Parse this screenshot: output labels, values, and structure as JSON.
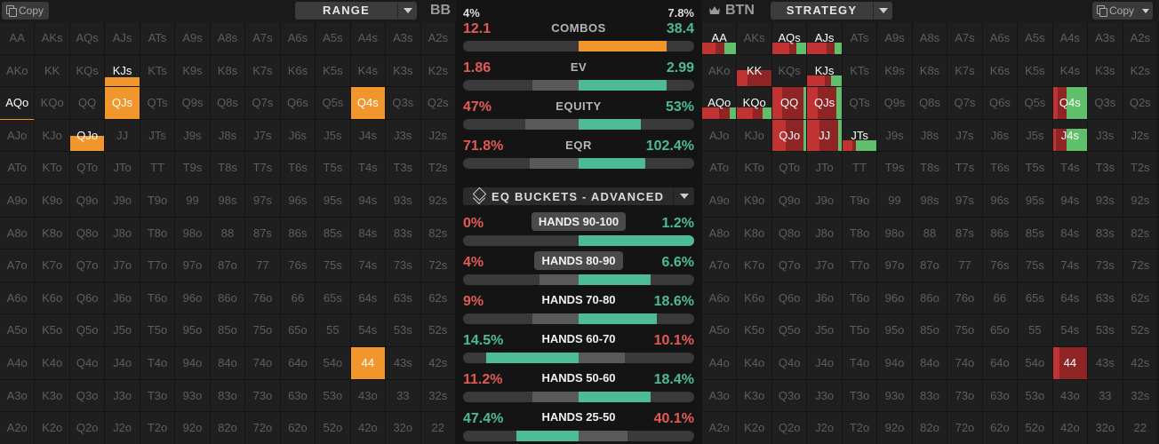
{
  "left": {
    "copy_label": "Copy",
    "range_label": "RANGE",
    "position": "BB"
  },
  "right": {
    "copy_label": "Copy",
    "strategy_label": "STRATEGY",
    "position": "BTN"
  },
  "hands": [
    [
      "AA",
      "AKs",
      "AQs",
      "AJs",
      "ATs",
      "A9s",
      "A8s",
      "A7s",
      "A6s",
      "A5s",
      "A4s",
      "A3s",
      "A2s"
    ],
    [
      "AKo",
      "KK",
      "KQs",
      "KJs",
      "KTs",
      "K9s",
      "K8s",
      "K7s",
      "K6s",
      "K5s",
      "K4s",
      "K3s",
      "K2s"
    ],
    [
      "AQo",
      "KQo",
      "QQ",
      "QJs",
      "QTs",
      "Q9s",
      "Q8s",
      "Q7s",
      "Q6s",
      "Q5s",
      "Q4s",
      "Q3s",
      "Q2s"
    ],
    [
      "AJo",
      "KJo",
      "QJo",
      "JJ",
      "JTs",
      "J9s",
      "J8s",
      "J7s",
      "J6s",
      "J5s",
      "J4s",
      "J3s",
      "J2s"
    ],
    [
      "ATo",
      "KTo",
      "QTo",
      "JTo",
      "TT",
      "T9s",
      "T8s",
      "T7s",
      "T6s",
      "T5s",
      "T4s",
      "T3s",
      "T2s"
    ],
    [
      "A9o",
      "K9o",
      "Q9o",
      "J9o",
      "T9o",
      "99",
      "98s",
      "97s",
      "96s",
      "95s",
      "94s",
      "93s",
      "92s"
    ],
    [
      "A8o",
      "K8o",
      "Q8o",
      "J8o",
      "T8o",
      "98o",
      "88",
      "87s",
      "86s",
      "85s",
      "84s",
      "83s",
      "82s"
    ],
    [
      "A7o",
      "K7o",
      "Q7o",
      "J7o",
      "T7o",
      "97o",
      "87o",
      "77",
      "76s",
      "75s",
      "74s",
      "73s",
      "72s"
    ],
    [
      "A6o",
      "K6o",
      "Q6o",
      "J6o",
      "T6o",
      "96o",
      "86o",
      "76o",
      "66",
      "65s",
      "64s",
      "63s",
      "62s"
    ],
    [
      "A5o",
      "K5o",
      "Q5o",
      "J5o",
      "T5o",
      "95o",
      "85o",
      "75o",
      "65o",
      "55",
      "54s",
      "53s",
      "52s"
    ],
    [
      "A4o",
      "K4o",
      "Q4o",
      "J4o",
      "T4o",
      "94o",
      "84o",
      "74o",
      "64o",
      "54o",
      "44",
      "43s",
      "42s"
    ],
    [
      "A3o",
      "K3o",
      "Q3o",
      "J3o",
      "T3o",
      "93o",
      "83o",
      "73o",
      "63o",
      "53o",
      "43o",
      "33",
      "32s"
    ],
    [
      "A2o",
      "K2o",
      "Q2o",
      "J2o",
      "T2o",
      "92o",
      "82o",
      "72o",
      "62o",
      "52o",
      "42o",
      "32o",
      "22"
    ]
  ],
  "bb_range": [
    {
      "hand": "KJs",
      "fraction": 0.28
    },
    {
      "hand": "QJs",
      "fraction": 1.0
    },
    {
      "hand": "Q4s",
      "fraction": 1.0
    },
    {
      "hand": "QJo",
      "fraction": 0.5
    },
    {
      "hand": "44",
      "fraction": 1.0
    }
  ],
  "bb_selected": "AQo",
  "btn_strategy": [
    {
      "hand": "AA",
      "fraction": 0.35,
      "mix": [
        0.4,
        0.25,
        0.35
      ]
    },
    {
      "hand": "AQs",
      "fraction": 0.35,
      "mix": [
        0.5,
        0.2,
        0.3
      ]
    },
    {
      "hand": "AJs",
      "fraction": 0.35,
      "mix": [
        0.55,
        0.25,
        0.2
      ]
    },
    {
      "hand": "KK",
      "fraction": 0.5,
      "mix": [
        0.3,
        0.7,
        0.0
      ]
    },
    {
      "hand": "KJs",
      "fraction": 0.35,
      "mix": [
        0.5,
        0.2,
        0.3
      ]
    },
    {
      "hand": "AQo",
      "fraction": 0.35,
      "mix": [
        0.5,
        0.3,
        0.2
      ]
    },
    {
      "hand": "KQo",
      "fraction": 0.35,
      "mix": [
        0.45,
        0.3,
        0.25
      ]
    },
    {
      "hand": "QQ",
      "fraction": 1.0,
      "mix": [
        0.3,
        0.6,
        0.1
      ]
    },
    {
      "hand": "QJs",
      "fraction": 1.0,
      "mix": [
        0.3,
        0.55,
        0.15
      ]
    },
    {
      "hand": "Q4s",
      "fraction": 1.0,
      "mix": [
        0.15,
        0.25,
        0.6
      ]
    },
    {
      "hand": "QJo",
      "fraction": 1.0,
      "mix": [
        0.4,
        0.5,
        0.1
      ]
    },
    {
      "hand": "JJ",
      "fraction": 1.0,
      "mix": [
        0.35,
        0.55,
        0.1
      ]
    },
    {
      "hand": "JTs",
      "fraction": 0.35,
      "mix": [
        0.3,
        0.1,
        0.6
      ]
    },
    {
      "hand": "J4s",
      "fraction": 0.7,
      "mix": [
        0.1,
        0.3,
        0.6
      ]
    },
    {
      "hand": "44",
      "fraction": 1.0,
      "mix": [
        0.2,
        0.8,
        0.0
      ]
    }
  ],
  "strategy_colors": [
    "#c13232",
    "#8e2424",
    "#5fbf6a"
  ],
  "colors": {
    "orange": "#f0962d",
    "red": "#e35a55",
    "green": "#4dbb94",
    "bar_bg": "#3a3a3c",
    "bar_mid": "#5a5a5c"
  },
  "stats": {
    "top_left_pct": "4%",
    "top_right_pct": "7.8%",
    "rows": [
      {
        "title": "COMBOS",
        "left": "12.1",
        "right": "38.4",
        "fill": [
          {
            "from": 0,
            "to": 0.5,
            "color": "#3a3a3c"
          },
          {
            "from": 0.5,
            "to": 0.88,
            "color": "#f0962d"
          }
        ]
      },
      {
        "title": "EV",
        "left": "1.86",
        "right": "2.99",
        "fill": [
          {
            "from": 0.3,
            "to": 0.5,
            "color": "#5a5a5c"
          },
          {
            "from": 0.5,
            "to": 0.88,
            "color": "#4dbb94"
          }
        ]
      },
      {
        "title": "EQUITY",
        "left": "47%",
        "right": "53%",
        "fill": [
          {
            "from": 0.27,
            "to": 0.5,
            "color": "#5a5a5c"
          },
          {
            "from": 0.5,
            "to": 0.77,
            "color": "#4dbb94"
          }
        ]
      },
      {
        "title": "EQR",
        "left": "71.8%",
        "right": "102.4%",
        "fill": [
          {
            "from": 0.29,
            "to": 0.5,
            "color": "#5a5a5c"
          },
          {
            "from": 0.5,
            "to": 0.79,
            "color": "#4dbb94"
          }
        ]
      }
    ]
  },
  "buckets_label": "EQ BUCKETS - ADVANCED",
  "buckets": [
    {
      "title": "HANDS 90-100",
      "left": "0%",
      "right": "1.2%",
      "left_color": "#e35a55",
      "right_color": "#4dbb94",
      "boxed": true,
      "fill": [
        {
          "from": 0.5,
          "to": 1.0,
          "color": "#4dbb94"
        }
      ]
    },
    {
      "title": "HANDS 80-90",
      "left": "4%",
      "right": "6.6%",
      "left_color": "#e35a55",
      "right_color": "#4dbb94",
      "boxed": true,
      "fill": [
        {
          "from": 0.33,
          "to": 0.5,
          "color": "#5a5a5c"
        },
        {
          "from": 0.5,
          "to": 0.81,
          "color": "#4dbb94"
        }
      ]
    },
    {
      "title": "HANDS 70-80",
      "left": "9%",
      "right": "18.6%",
      "left_color": "#e35a55",
      "right_color": "#4dbb94",
      "boxed": false,
      "fill": [
        {
          "from": 0.3,
          "to": 0.5,
          "color": "#5a5a5c"
        },
        {
          "from": 0.5,
          "to": 0.84,
          "color": "#4dbb94"
        }
      ]
    },
    {
      "title": "HANDS 60-70",
      "left": "14.5%",
      "right": "10.1%",
      "left_color": "#4dbb94",
      "right_color": "#e35a55",
      "boxed": false,
      "fill": [
        {
          "from": 0.1,
          "to": 0.5,
          "color": "#4dbb94"
        },
        {
          "from": 0.5,
          "to": 0.7,
          "color": "#5a5a5c"
        }
      ]
    },
    {
      "title": "HANDS 50-60",
      "left": "11.2%",
      "right": "18.4%",
      "left_color": "#e35a55",
      "right_color": "#4dbb94",
      "boxed": false,
      "fill": [
        {
          "from": 0.3,
          "to": 0.5,
          "color": "#5a5a5c"
        },
        {
          "from": 0.5,
          "to": 0.81,
          "color": "#4dbb94"
        }
      ]
    },
    {
      "title": "HANDS 25-50",
      "left": "47.4%",
      "right": "40.1%",
      "left_color": "#4dbb94",
      "right_color": "#e35a55",
      "boxed": false,
      "fill": [
        {
          "from": 0.23,
          "to": 0.5,
          "color": "#4dbb94"
        },
        {
          "from": 0.5,
          "to": 0.71,
          "color": "#5a5a5c"
        }
      ]
    }
  ]
}
